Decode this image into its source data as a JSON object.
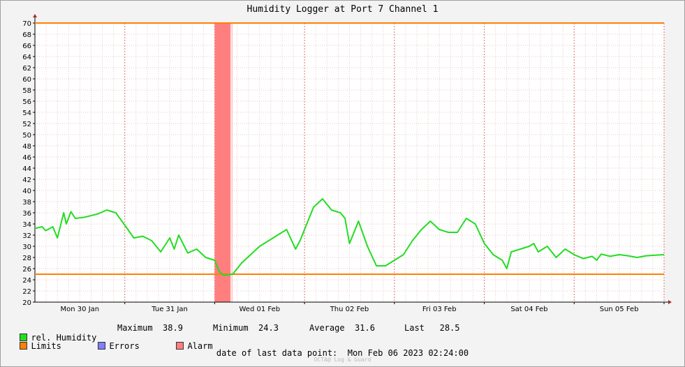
{
  "chart_data": {
    "type": "line",
    "title": "Humidity Logger at Port 7 Channel 1",
    "ylim": [
      20,
      70
    ],
    "yticks": [
      20,
      22,
      24,
      26,
      28,
      30,
      32,
      34,
      36,
      38,
      40,
      42,
      44,
      46,
      48,
      50,
      52,
      54,
      56,
      58,
      60,
      62,
      64,
      66,
      68,
      70
    ],
    "xlim_days": [
      0,
      7
    ],
    "xlabels": [
      "Mon 30 Jan",
      "Tue 31 Jan",
      "Wed 01 Feb",
      "Thu 02 Feb",
      "Fri 03 Feb",
      "Sat 04 Feb",
      "Sun 05 Feb"
    ],
    "grid": true,
    "limits": {
      "upper": 70,
      "lower": 25
    },
    "alarm_period": {
      "from": "Wed 01 Feb 00:00",
      "to": "Wed 01 Feb 04:15"
    },
    "series": [
      {
        "name": "rel. Humidity",
        "color": "#22dd22",
        "x": [
          0,
          0.08,
          0.12,
          0.2,
          0.25,
          0.32,
          0.35,
          0.4,
          0.45,
          0.55,
          0.7,
          0.8,
          0.9,
          1.0,
          1.1,
          1.2,
          1.3,
          1.4,
          1.5,
          1.55,
          1.6,
          1.7,
          1.8,
          1.9,
          2.0,
          2.05,
          2.1,
          2.2,
          2.3,
          2.4,
          2.5,
          2.7,
          2.8,
          2.9,
          2.95,
          3.0,
          3.1,
          3.2,
          3.25,
          3.3,
          3.4,
          3.45,
          3.5,
          3.6,
          3.7,
          3.8,
          3.9,
          4.0,
          4.05,
          4.1,
          4.2,
          4.3,
          4.4,
          4.5,
          4.6,
          4.7,
          4.8,
          4.9,
          5.0,
          5.1,
          5.2,
          5.25,
          5.3,
          5.4,
          5.5,
          5.55,
          5.6,
          5.7,
          5.8,
          5.9,
          6.0,
          6.1,
          6.2,
          6.25,
          6.3,
          6.4,
          6.5,
          6.6,
          6.7,
          6.8,
          6.9,
          7.0
        ],
        "y": [
          33.2,
          33.5,
          32.8,
          33.5,
          31.5,
          36.0,
          34.0,
          36.2,
          35.0,
          35.2,
          35.8,
          36.5,
          36.0,
          33.8,
          31.5,
          31.8,
          31.0,
          29.0,
          31.5,
          29.5,
          32.0,
          28.8,
          29.5,
          28.0,
          27.5,
          25.5,
          24.8,
          25.0,
          27.0,
          28.5,
          30.0,
          32.0,
          33.0,
          29.5,
          31.0,
          33.0,
          37.0,
          38.5,
          37.5,
          36.5,
          36.0,
          35.0,
          30.5,
          34.5,
          30.0,
          26.5,
          26.5,
          27.5,
          28.0,
          28.5,
          31.0,
          33.0,
          34.5,
          33.0,
          32.5,
          32.5,
          35.0,
          34.0,
          30.5,
          28.5,
          27.5,
          26.0,
          29.0,
          29.5,
          30.0,
          30.5,
          29.0,
          30.0,
          28.0,
          29.5,
          28.5,
          27.8,
          28.2,
          27.5,
          28.6,
          28.2,
          28.5,
          28.3,
          28.0,
          28.3,
          28.4,
          28.5
        ]
      }
    ],
    "stats": {
      "maximum_label": "Maximum",
      "maximum": "38.9",
      "minimum_label": "Minimum",
      "minimum": "24.3",
      "average_label": "Average",
      "average": "31.6",
      "last_label": "Last",
      "last": "28.5"
    }
  },
  "legend": {
    "humidity_label": "rel. Humidity",
    "limits_label": "Limits",
    "errors_label": "Errors",
    "alarm_label": "Alarm",
    "colors": {
      "humidity": "#22dd22",
      "limits": "#ff7f00",
      "errors": "#7f7fff",
      "alarm": "#ff7f7f"
    }
  },
  "footer": {
    "last_point_label": "date of last data point:",
    "last_point_value": "Mon Feb 06 2023 02:24:00"
  },
  "watermark": "OCTA@ Log & Guard"
}
